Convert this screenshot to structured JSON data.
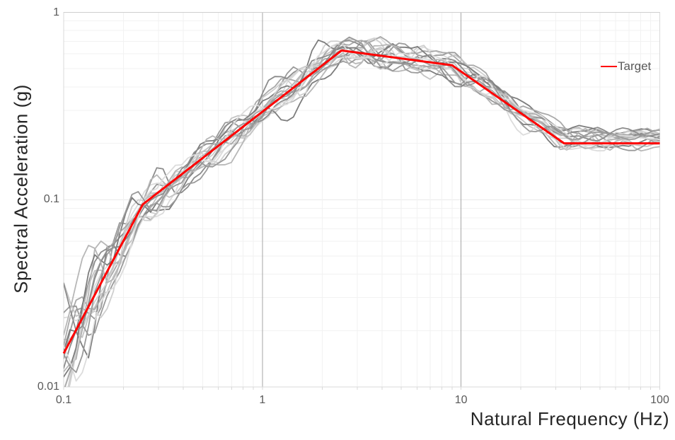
{
  "chart_data": {
    "type": "line",
    "title": "",
    "xlabel": "Natural Frequency (Hz)",
    "ylabel": "Spectral Acceleration (g)",
    "x_scale": "log",
    "y_scale": "log",
    "xlim": [
      0.1,
      100
    ],
    "ylim": [
      0.01,
      1
    ],
    "x_ticks": [
      {
        "value": 0.1,
        "label": "0.1"
      },
      {
        "value": 1,
        "label": "1"
      },
      {
        "value": 10,
        "label": "10"
      },
      {
        "value": 100,
        "label": "100"
      }
    ],
    "y_ticks": [
      {
        "value": 0.01,
        "label": "0.01"
      },
      {
        "value": 0.1,
        "label": "0.1"
      },
      {
        "value": 1,
        "label": "1"
      }
    ],
    "grid": {
      "minor": true,
      "major_vertical_at": [
        1,
        10
      ]
    },
    "legend": {
      "label": "Target",
      "position": "top-right"
    },
    "series": [
      {
        "name": "Target",
        "color": "#ff0000",
        "width": 3,
        "points": [
          [
            0.1,
            0.0151
          ],
          [
            0.25,
            0.0944
          ],
          [
            2.5,
            0.626
          ],
          [
            9,
            0.522
          ],
          [
            33,
            0.2
          ],
          [
            100,
            0.2
          ]
        ]
      }
    ],
    "ensemble": {
      "name": "Matched spectra (unlabeled gray lines)",
      "count": 18,
      "line_width": 1.8,
      "colors": [
        "#dcdcdc",
        "#cfcfcf",
        "#c4c4c4",
        "#b7b7b7",
        "#a9a9a9",
        "#9a9a9a",
        "#8c8c8c",
        "#7d7d7d"
      ],
      "samples_per_decade": 32,
      "seed": 11,
      "per_line_offset_sigma_ln": 0.045,
      "sigma_ln_vs_freq": [
        [
          0.1,
          0.4
        ],
        [
          0.25,
          0.17
        ],
        [
          0.6,
          0.12
        ],
        [
          2,
          0.1
        ],
        [
          10,
          0.1
        ],
        [
          25,
          0.08
        ],
        [
          100,
          0.06
        ]
      ],
      "bias_ln_vs_freq": [
        [
          0.1,
          0.0
        ],
        [
          20,
          0.01
        ],
        [
          33,
          0.06
        ],
        [
          100,
          0.07
        ]
      ]
    }
  }
}
